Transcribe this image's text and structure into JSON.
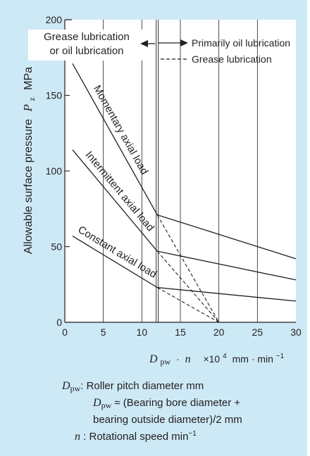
{
  "colors": {
    "panel_bg": "#cde9f6",
    "plot_bg": "#ffffff",
    "ink": "#231f20"
  },
  "chart_data": {
    "type": "line",
    "xlim": [
      0,
      30
    ],
    "ylim": [
      0,
      200
    ],
    "x_ticks": [
      "0",
      "5",
      "10",
      "15",
      "20",
      "25",
      "30"
    ],
    "y_ticks": [
      "0",
      "50",
      "100",
      "150",
      "200"
    ],
    "grid": "vertical",
    "xlabel": {
      "symbol": "D",
      "subscript": "pw",
      "dot": "·",
      "var": "n",
      "unit_prefix": "×10",
      "exponent": "4",
      "unit": "mm · min",
      "unit_exponent": "−1"
    },
    "ylabel": {
      "text": "Allowable surface pressure",
      "symbol": "P",
      "subscript": "z",
      "unit": "MPa"
    },
    "region_left_label": [
      "Grease lubrication",
      "or oil lubrication"
    ],
    "region_boundary_x": 12,
    "legend": [
      {
        "label": "Primarily oil lubrication",
        "style": "solid-arrow"
      },
      {
        "label": "Grease lubrication",
        "style": "dashed"
      }
    ],
    "series": [
      {
        "name": "Momentary axial load",
        "points": [
          [
            1,
            171
          ],
          [
            12,
            71
          ],
          [
            30,
            42
          ]
        ],
        "grease_end": [
          20,
          0
        ]
      },
      {
        "name": "Intermittent axial load",
        "points": [
          [
            1,
            114
          ],
          [
            12,
            47
          ],
          [
            30,
            28
          ]
        ],
        "grease_end": [
          20,
          0
        ]
      },
      {
        "name": "Constant axial load",
        "points": [
          [
            1,
            57
          ],
          [
            12,
            23
          ],
          [
            30,
            14
          ]
        ],
        "grease_end": [
          20,
          0
        ]
      }
    ]
  },
  "footnotes": {
    "dpw_symbol": "D",
    "dpw_sub": "pw",
    "dpw_colon": ":",
    "dpw_def": "Roller pitch diameter  mm",
    "approx_symbol": "D",
    "approx_sub": "pw",
    "approx_text": " ≈ (Bearing bore diameter +",
    "approx_text2": "bearing outside diameter)/2  mm",
    "n_symbol": "n",
    "n_colon": " :",
    "n_def": " Rotational speed  min",
    "n_exp": "−1"
  }
}
